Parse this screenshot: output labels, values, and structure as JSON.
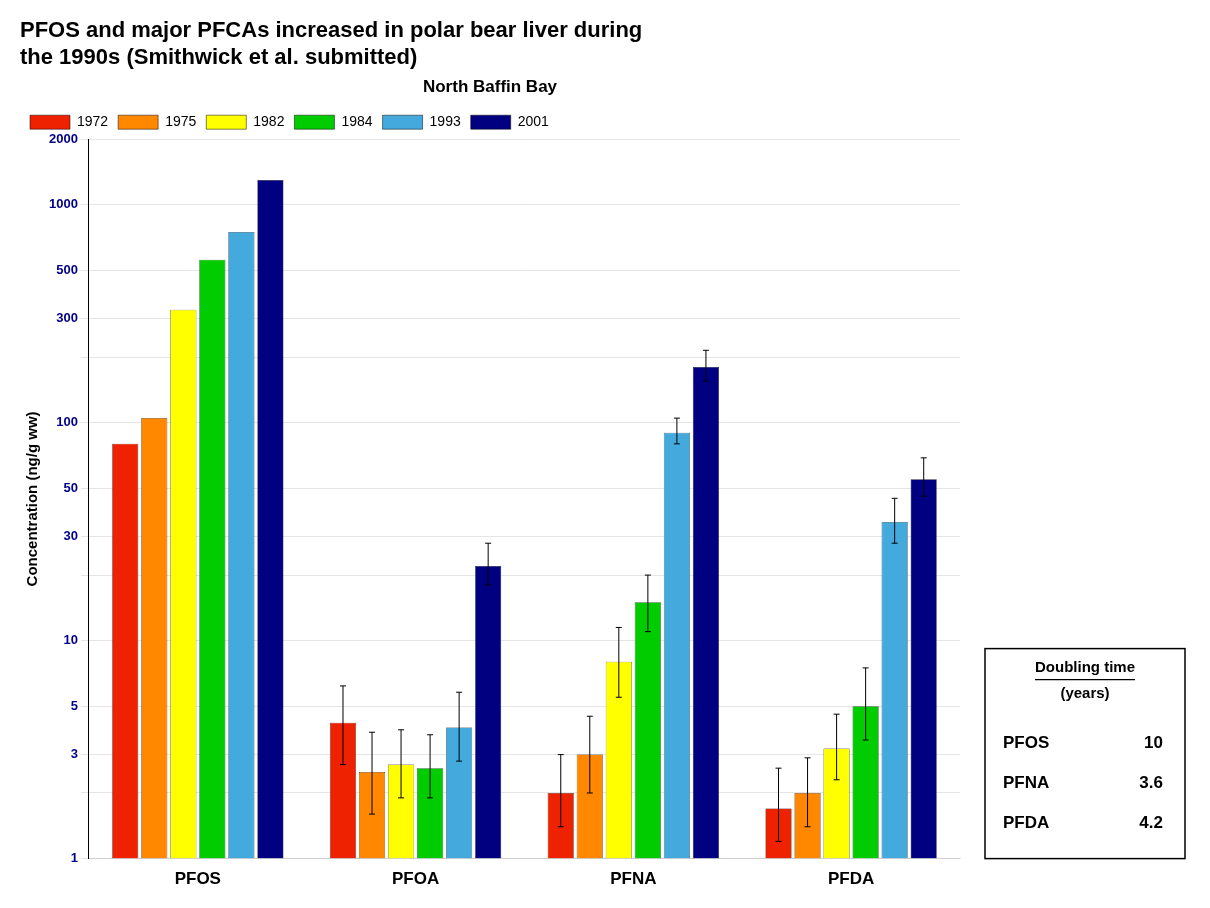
{
  "chart_data": {
    "type": "bar",
    "title": "PFOS and major PFCAs increased in polar bear liver during\nthe 1990s (Smithwick et al. submitted)",
    "subtitle": "North Baffin Bay",
    "y_label": "Concentration (ng/g ww)",
    "categories": [
      "PFOS",
      "PFOA",
      "PFNA",
      "PFDA"
    ],
    "series": [
      {
        "name": "1972",
        "color": "#EE2200",
        "values": [
          80,
          4.2,
          2.0,
          1.7
        ],
        "error_plus": [
          null,
          2.0,
          1.0,
          0.9
        ],
        "error_minus": [
          null,
          1.5,
          0.6,
          0.5
        ]
      },
      {
        "name": "1975",
        "color": "#FF8800",
        "values": [
          105,
          2.5,
          3.0,
          2.0
        ],
        "error_plus": [
          null,
          1.3,
          1.5,
          0.9
        ],
        "error_minus": [
          null,
          0.9,
          1.0,
          0.6
        ]
      },
      {
        "name": "1982",
        "color": "#FFFF00",
        "values": [
          330,
          2.7,
          8.0,
          3.2
        ],
        "error_plus": [
          null,
          1.2,
          3.5,
          1.4
        ],
        "error_minus": [
          null,
          0.8,
          2.5,
          0.9
        ]
      },
      {
        "name": "1984",
        "color": "#00CC00",
        "values": [
          560,
          2.6,
          15,
          5.0
        ],
        "error_plus": [
          null,
          1.1,
          5.0,
          2.5
        ],
        "error_minus": [
          null,
          0.7,
          4.0,
          1.5
        ]
      },
      {
        "name": "1993",
        "color": "#44AADD",
        "values": [
          750,
          4.0,
          90,
          35
        ],
        "error_plus": [
          null,
          1.8,
          15,
          10
        ],
        "error_minus": [
          null,
          1.2,
          10,
          7
        ]
      },
      {
        "name": "2001",
        "color": "#000080",
        "values": [
          1300,
          22,
          180,
          55
        ],
        "error_plus": [
          null,
          6,
          35,
          14
        ],
        "error_minus": [
          null,
          4,
          25,
          9
        ]
      }
    ],
    "log": "y",
    "ylim": [
      1,
      2000
    ],
    "yticks": [
      1,
      {
        "value": 2,
        "label": ""
      },
      3,
      5,
      10,
      {
        "value": 20,
        "label": ""
      },
      30,
      50,
      100,
      {
        "value": 200,
        "label": ""
      },
      300,
      500,
      1000,
      2000
    ],
    "grid": true,
    "legend": "upper left",
    "doubling_time": {
      "title": "Doubling time",
      "unit": "(years)",
      "categories": [
        "PFOS",
        "PFNA",
        "PFDA"
      ],
      "values": [
        10,
        3.6,
        4.2
      ]
    }
  }
}
